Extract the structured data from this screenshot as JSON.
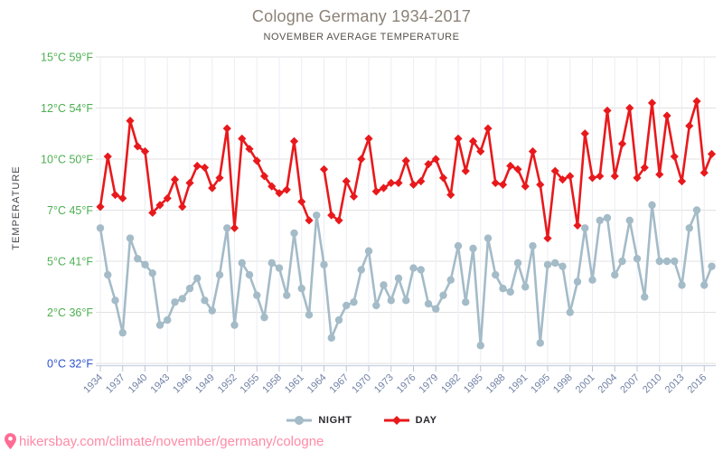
{
  "title": "Cologne Germany 1934-2017",
  "subtitle": "NOVEMBER AVERAGE TEMPERATURE",
  "y_axis_title": "TEMPERATURE",
  "footer": {
    "url": "hikersbay.com/climate/november/germany/cologne"
  },
  "legend": {
    "night_label": "NIGHT",
    "day_label": "DAY"
  },
  "colors": {
    "night": "#a4bbc8",
    "day": "#e8191c",
    "label_green": "#4caf50",
    "label_blue": "#2e52cd",
    "x_label": "#7181a5",
    "grid_h": "#e2e2e2",
    "grid_v": "#eaedf4",
    "axis_line": "#c7d0e2",
    "tick": "#b9c3d8",
    "pin_pink": "#ff6b93",
    "footer_pink": "#ff8aa6"
  },
  "chart_data": {
    "type": "line",
    "title": "Cologne Germany 1934-2017",
    "subtitle": "NOVEMBER AVERAGE TEMPERATURE",
    "ylabel": "TEMPERATURE",
    "grid": true,
    "legend_position": "bottom",
    "note": "x axis is categorical 1934-2017, year 1994 absent; DAY value for 1963 missing (line break)",
    "x": [
      1934,
      1935,
      1936,
      1937,
      1938,
      1939,
      1940,
      1941,
      1942,
      1943,
      1944,
      1945,
      1946,
      1947,
      1948,
      1949,
      1950,
      1951,
      1952,
      1953,
      1954,
      1955,
      1956,
      1957,
      1958,
      1959,
      1960,
      1961,
      1962,
      1963,
      1964,
      1965,
      1966,
      1967,
      1968,
      1969,
      1970,
      1971,
      1972,
      1973,
      1974,
      1975,
      1976,
      1977,
      1978,
      1979,
      1980,
      1981,
      1982,
      1983,
      1984,
      1985,
      1986,
      1987,
      1988,
      1989,
      1990,
      1991,
      1992,
      1993,
      1995,
      1996,
      1997,
      1998,
      1999,
      2000,
      2001,
      2002,
      2003,
      2004,
      2005,
      2006,
      2007,
      2008,
      2009,
      2010,
      2011,
      2012,
      2013,
      2014,
      2015,
      2016,
      2017
    ],
    "x_tick_labels": [
      "1934",
      "1937",
      "1940",
      "1943",
      "1946",
      "1949",
      "1952",
      "1955",
      "1958",
      "1961",
      "1964",
      "1967",
      "1970",
      "1973",
      "1976",
      "1979",
      "1982",
      "1985",
      "1988",
      "1991",
      "1995",
      "1998",
      "2001",
      "2004",
      "2007",
      "2010",
      "2013",
      "2016"
    ],
    "y_tick_labels": [
      {
        "label": "15°C 59°F",
        "value": 15,
        "color": "#4caf50"
      },
      {
        "label": "12°C 54°F",
        "value": 12,
        "color": "#4caf50"
      },
      {
        "label": "10°C 50°F",
        "value": 10,
        "color": "#4caf50"
      },
      {
        "label": "7°C 45°F",
        "value": 7,
        "color": "#4caf50"
      },
      {
        "label": "5°C 41°F",
        "value": 5,
        "color": "#4caf50"
      },
      {
        "label": "2°C 36°F",
        "value": 2,
        "color": "#4caf50"
      },
      {
        "label": "0°C 32°F",
        "value": 0,
        "color": "#2e52cd"
      }
    ],
    "y_anchor_values_celsius": [
      0,
      2,
      5,
      7,
      10,
      12,
      15
    ],
    "series": [
      {
        "name": "NIGHT",
        "marker": "circle",
        "color": "#a4bbc8",
        "values": [
          6.3,
          4.2,
          2.7,
          1.2,
          5.9,
          5.1,
          4.8,
          4.3,
          1.5,
          1.7,
          2.6,
          2.8,
          3.4,
          4.0,
          2.7,
          2.1,
          4.2,
          6.3,
          1.5,
          4.9,
          4.2,
          3.0,
          1.8,
          4.9,
          4.6,
          3.0,
          6.1,
          3.4,
          1.9,
          6.8,
          4.8,
          1.0,
          1.7,
          2.4,
          2.6,
          4.5,
          5.4,
          2.4,
          3.6,
          2.7,
          4.0,
          2.7,
          4.6,
          4.5,
          2.5,
          2.2,
          3.0,
          3.9,
          5.6,
          2.6,
          5.5,
          0.7,
          5.9,
          4.2,
          3.4,
          3.2,
          4.9,
          3.5,
          5.6,
          0.8,
          4.8,
          4.9,
          4.7,
          2.0,
          3.8,
          6.3,
          3.9,
          6.6,
          6.7,
          4.2,
          5.0,
          6.6,
          5.1,
          2.9,
          7.3,
          5.0,
          5.0,
          5.0,
          3.6,
          6.3,
          7.0,
          3.6,
          4.7
        ]
      },
      {
        "name": "DAY",
        "marker": "diamond",
        "color": "#e8191c",
        "values": [
          7.2,
          10.1,
          7.9,
          7.7,
          11.5,
          10.5,
          10.3,
          6.9,
          7.3,
          7.7,
          8.8,
          7.2,
          8.6,
          9.6,
          9.5,
          8.3,
          8.9,
          11.2,
          6.3,
          10.8,
          10.4,
          9.9,
          9.0,
          8.4,
          8.0,
          8.2,
          10.7,
          7.5,
          6.6,
          null,
          9.4,
          6.8,
          6.6,
          8.7,
          7.8,
          10.0,
          10.8,
          8.1,
          8.3,
          8.6,
          8.6,
          9.9,
          8.5,
          8.7,
          9.7,
          10.0,
          8.9,
          7.9,
          10.8,
          9.3,
          10.7,
          10.3,
          11.2,
          8.6,
          8.5,
          9.6,
          9.4,
          8.4,
          10.3,
          8.5,
          5.9,
          9.3,
          8.8,
          9.0,
          6.4,
          11.0,
          8.9,
          9.0,
          11.9,
          9.0,
          10.6,
          12.0,
          8.9,
          9.5,
          12.3,
          9.1,
          11.7,
          10.1,
          8.7,
          11.3,
          12.4,
          9.2,
          10.2
        ]
      }
    ]
  }
}
